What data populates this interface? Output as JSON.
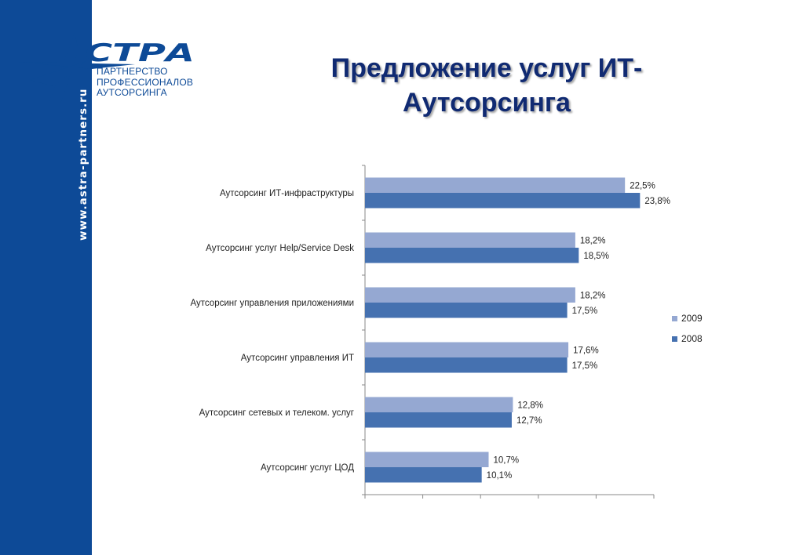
{
  "colors": {
    "sidebar": "#0d4a97",
    "title": "#102a72",
    "series_2009": "#95a8d2",
    "series_2008": "#4571b0"
  },
  "logo": {
    "wordmark": "СТРА",
    "lines": [
      "ПАРТНЕРСТВО",
      "ПРОФЕССИОНАЛОВ",
      "АУТСОРСИНГА"
    ]
  },
  "sidebar": {
    "url": "www.astra-partners.ru"
  },
  "slide": {
    "title_line1": "Предложение услуг ИТ-",
    "title_line2": "Аутсорсинга"
  },
  "chart_data": {
    "type": "bar",
    "orientation": "horizontal",
    "categories": [
      "Аутсорсинг ИТ-инфраструктуры",
      "Аутсорсинг услуг Help/Service Desk",
      "Аутсорсинг управления приложениями",
      "Аутсорсинг управления ИТ",
      "Аутсорсинг сетевых и телеком. услуг",
      "Аутсорсинг услуг ЦОД"
    ],
    "series": [
      {
        "name": "2009",
        "values": [
          22.5,
          18.2,
          18.2,
          17.6,
          12.8,
          10.7
        ],
        "labels": [
          "22,5%",
          "18,2%",
          "18,2%",
          "17,6%",
          "12,8%",
          "10,7%"
        ]
      },
      {
        "name": "2008",
        "values": [
          23.8,
          18.5,
          17.5,
          17.5,
          12.7,
          10.1
        ],
        "labels": [
          "23,8%",
          "18,5%",
          "17,5%",
          "17,5%",
          "12,7%",
          "10,1%"
        ]
      }
    ],
    "xlim": [
      0,
      25
    ],
    "grid": false,
    "legend": "right"
  }
}
